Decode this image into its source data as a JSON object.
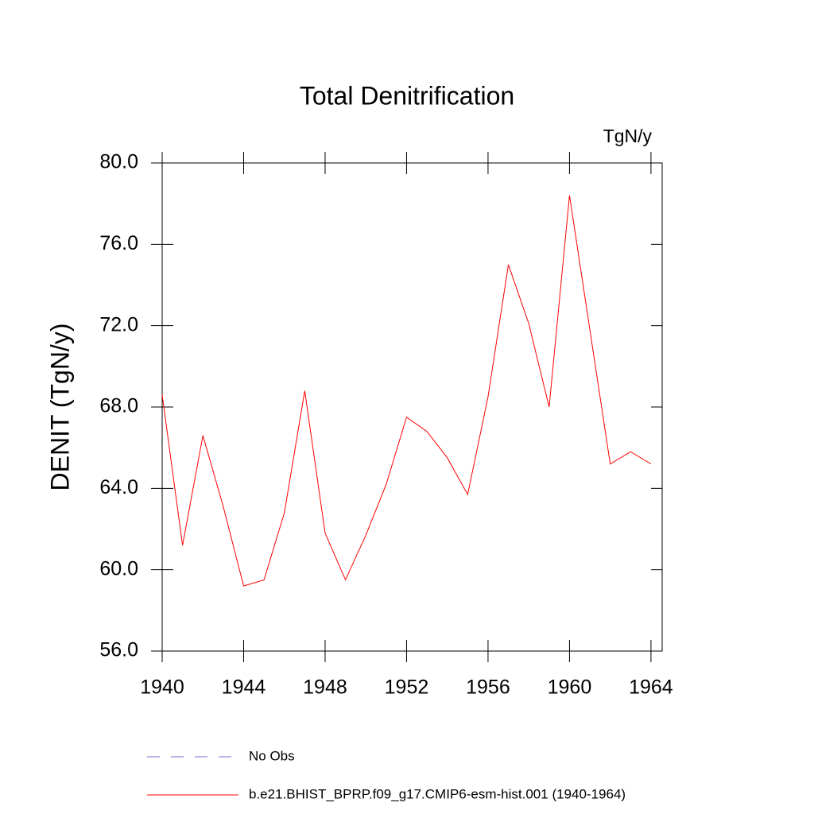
{
  "chart_data": {
    "type": "line",
    "title": "Total Denitrification",
    "units": "TgN/y",
    "y_label": "DENIT  (TgN/y)",
    "x": [
      1940,
      1941,
      1942,
      1943,
      1944,
      1945,
      1946,
      1947,
      1948,
      1949,
      1950,
      1951,
      1952,
      1953,
      1954,
      1955,
      1956,
      1957,
      1958,
      1959,
      1960,
      1961,
      1962,
      1963,
      1964
    ],
    "series": [
      {
        "name": "b.e21.BHIST_BPRP.f09_g17.CMIP6-esm-hist.001 (1940-1964)",
        "color": "#ff0000",
        "values": [
          68.6,
          61.2,
          66.6,
          63.1,
          59.2,
          59.5,
          62.8,
          68.8,
          61.8,
          59.5,
          61.7,
          64.2,
          67.5,
          66.8,
          65.5,
          63.7,
          68.5,
          75.0,
          72.1,
          68.0,
          78.4,
          71.8,
          65.2,
          65.8,
          65.2
        ]
      }
    ],
    "extra_legend": [
      {
        "name": "No Obs",
        "color": "#7070c8",
        "dashed": true
      }
    ],
    "xlim": [
      1940,
      1964.55
    ],
    "xticks": [
      1940,
      1944,
      1948,
      1952,
      1956,
      1960,
      1964
    ],
    "ylim": [
      56,
      80
    ],
    "yticks": [
      {
        "value": 56,
        "label": "56.0"
      },
      {
        "value": 60,
        "label": "60.0"
      },
      {
        "value": 64,
        "label": "64.0"
      },
      {
        "value": 68,
        "label": "68.0"
      },
      {
        "value": 72,
        "label": "72.0"
      },
      {
        "value": 76,
        "label": "76.0"
      },
      {
        "value": 80,
        "label": "80.0"
      }
    ]
  }
}
